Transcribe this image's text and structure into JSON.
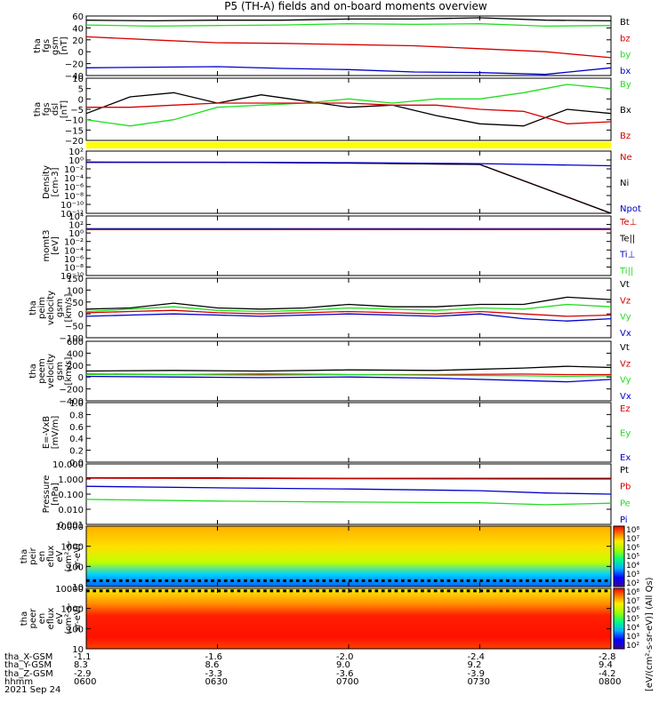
{
  "title": "P5 (TH-A) fields and on-board moments overview",
  "time_axis": {
    "ticks": [
      "0600",
      "0630",
      "0700",
      "0730",
      "0800"
    ],
    "date": "2021 Sep 24",
    "rows": [
      {
        "label": "tha_X-GSM",
        "values": [
          "-1.1",
          "-1.6",
          "-2.0",
          "-2.4",
          "-2.8"
        ]
      },
      {
        "label": "tha_Y-GSM",
        "values": [
          "8.3",
          "8.6",
          "9.0",
          "9.2",
          "9.4"
        ]
      },
      {
        "label": "tha_Z-GSM",
        "values": [
          "-2.9",
          "-3.3",
          "-3.6",
          "-3.9",
          "-4.2"
        ]
      },
      {
        "label": "hhmm",
        "values": [
          "0600",
          "0630",
          "0700",
          "0730",
          "0800"
        ]
      }
    ]
  },
  "colors": {
    "black": "#000000",
    "red": "#d40000",
    "green": "#22dd22",
    "blue": "#0000cc",
    "yellow": "#ffff00"
  },
  "chart_data": [
    {
      "type": "line",
      "panel": "fgs-gsm",
      "ylabel": [
        "tha",
        "fgs",
        "gsm",
        "[nT]"
      ],
      "ylim": [
        -40,
        60
      ],
      "ticks": [
        "60",
        "40",
        "20",
        "0",
        "−20",
        "−40"
      ],
      "legend": [
        {
          "name": "Bt",
          "color": "#000000"
        },
        {
          "name": "bz",
          "color": "#d40000"
        },
        {
          "name": "by",
          "color": "#22dd22"
        },
        {
          "name": "bx",
          "color": "#0000cc"
        }
      ],
      "series": [
        {
          "name": "Bt",
          "x": [
            0,
            15,
            30,
            45,
            60,
            75,
            90,
            105,
            120
          ],
          "values": [
            53,
            52,
            53,
            53,
            55,
            55,
            57,
            53,
            52
          ]
        },
        {
          "name": "by",
          "x": [
            0,
            15,
            30,
            45,
            60,
            75,
            90,
            105,
            120
          ],
          "values": [
            45,
            43,
            44,
            45,
            47,
            46,
            47,
            43,
            44
          ]
        },
        {
          "name": "bz",
          "x": [
            0,
            15,
            30,
            45,
            60,
            75,
            90,
            105,
            120
          ],
          "values": [
            25,
            20,
            15,
            14,
            12,
            10,
            5,
            0,
            -10
          ]
        },
        {
          "name": "bx",
          "x": [
            0,
            15,
            30,
            45,
            60,
            75,
            90,
            105,
            120
          ],
          "values": [
            -27,
            -26,
            -25,
            -28,
            -30,
            -34,
            -35,
            -38,
            -27
          ]
        }
      ]
    },
    {
      "type": "line",
      "panel": "fgs-dsl",
      "ylabel": [
        "tha",
        "fgs",
        "dsl",
        "[nT]"
      ],
      "ylim": [
        -20,
        10
      ],
      "ticks": [
        "10",
        "5",
        "0",
        "−5",
        "−10",
        "−15",
        "−20"
      ],
      "legend": [
        {
          "name": "By",
          "color": "#22dd22"
        },
        {
          "name": "Bx",
          "color": "#000000"
        },
        {
          "name": "Bz",
          "color": "#d40000"
        }
      ],
      "series": [
        {
          "name": "Bx",
          "x": [
            0,
            10,
            20,
            30,
            40,
            50,
            60,
            70,
            80,
            90,
            100,
            110,
            120
          ],
          "values": [
            -7,
            1,
            3,
            -2,
            2,
            -1,
            -4,
            -3,
            -8,
            -12,
            -13,
            -5,
            -7
          ]
        },
        {
          "name": "By",
          "x": [
            0,
            10,
            20,
            30,
            40,
            50,
            60,
            70,
            80,
            90,
            100,
            110,
            120
          ],
          "values": [
            -10,
            -13,
            -10,
            -4,
            -3,
            -2,
            0,
            -2,
            0,
            0,
            3,
            7,
            5
          ]
        },
        {
          "name": "Bz",
          "x": [
            0,
            10,
            20,
            30,
            40,
            50,
            60,
            70,
            80,
            90,
            100,
            110,
            120
          ],
          "values": [
            -4,
            -4,
            -3,
            -2,
            -2,
            -2,
            -2,
            -3,
            -3,
            -5,
            -6,
            -12,
            -11
          ]
        }
      ]
    },
    {
      "type": "line",
      "panel": "density",
      "ylabel": [
        "Density",
        "[cm-3]"
      ],
      "log": true,
      "ylim": [
        -12,
        2
      ],
      "ticks": [
        "10²",
        "10⁰",
        "10⁻²",
        "10⁻⁴",
        "10⁻⁶",
        "10⁻⁸",
        "10⁻¹⁰",
        "10⁻¹²"
      ],
      "legend": [
        {
          "name": "Ne",
          "color": "#d40000"
        },
        {
          "name": "Ni",
          "color": "#000000"
        },
        {
          "name": "Npot",
          "color": "#0000cc"
        }
      ],
      "series": [
        {
          "name": "Ne",
          "x": [
            0,
            30,
            60,
            90,
            120
          ],
          "values": [
            0.3,
            0.3,
            0.2,
            0.1,
            0
          ]
        },
        {
          "name": "Ni",
          "x": [
            0,
            30,
            60,
            90,
            120
          ],
          "values": [
            0.3,
            0.3,
            0.2,
            0.1,
            0
          ]
        },
        {
          "name": "Npot",
          "x": [
            0,
            30,
            60,
            90,
            120
          ],
          "values": [
            0.35,
            0.32,
            0.25,
            0.15,
            0.05
          ]
        }
      ]
    },
    {
      "type": "line",
      "panel": "momt3",
      "ylabel": [
        "momt3",
        "[eV]"
      ],
      "log": true,
      "ylim": [
        -12,
        4
      ],
      "ticks": [
        "10⁴",
        "10²",
        "10⁰",
        "10⁻²",
        "10⁻⁴",
        "10⁻⁶",
        "10⁻⁸",
        "10⁻¹⁰"
      ],
      "legend": [
        {
          "name": "Te⊥",
          "color": "#d40000"
        },
        {
          "name": "Te||",
          "color": "#000000"
        },
        {
          "name": "Ti⊥",
          "color": "#0000cc"
        },
        {
          "name": "Ti||",
          "color": "#22dd22"
        }
      ],
      "series": [
        {
          "name": "Ti||",
          "x": [
            0,
            30,
            60,
            90,
            120
          ],
          "values": [
            3.7,
            3.7,
            3.7,
            3.7,
            3.7
          ]
        },
        {
          "name": "Ti⊥",
          "x": [
            0,
            30,
            60,
            90,
            120
          ],
          "values": [
            3.6,
            3.6,
            3.6,
            3.6,
            3.6
          ]
        },
        {
          "name": "Te||",
          "x": [
            0,
            30,
            60,
            90,
            120
          ],
          "values": [
            2.2,
            2.2,
            2.3,
            2.4,
            2.5
          ]
        },
        {
          "name": "Te⊥",
          "x": [
            0,
            30,
            60,
            90,
            120
          ],
          "values": [
            2.1,
            2.1,
            2.2,
            2.3,
            2.4
          ]
        }
      ]
    },
    {
      "type": "line",
      "panel": "peim-velocity",
      "ylabel": [
        "tha",
        "peim",
        "velocity",
        "gsm",
        "[km/s]"
      ],
      "ylim": [
        -100,
        150
      ],
      "ticks": [
        "150",
        "100",
        "50",
        "0",
        "−50",
        "−100"
      ],
      "legend": [
        {
          "name": "Vt",
          "color": "#000000"
        },
        {
          "name": "Vz",
          "color": "#d40000"
        },
        {
          "name": "Vy",
          "color": "#22dd22"
        },
        {
          "name": "Vx",
          "color": "#0000cc"
        }
      ],
      "series": [
        {
          "name": "Vt",
          "x": [
            0,
            10,
            20,
            30,
            40,
            50,
            60,
            70,
            80,
            90,
            100,
            110,
            120
          ],
          "values": [
            20,
            25,
            45,
            25,
            20,
            25,
            40,
            30,
            30,
            40,
            40,
            70,
            60
          ]
        },
        {
          "name": "Vz",
          "x": [
            0,
            10,
            20,
            30,
            40,
            50,
            60,
            70,
            80,
            90,
            100,
            110,
            120
          ],
          "values": [
            5,
            10,
            15,
            5,
            0,
            5,
            10,
            5,
            0,
            10,
            0,
            -10,
            -5
          ]
        },
        {
          "name": "Vy",
          "x": [
            0,
            10,
            20,
            30,
            40,
            50,
            60,
            70,
            80,
            90,
            100,
            110,
            120
          ],
          "values": [
            10,
            20,
            30,
            15,
            10,
            15,
            25,
            20,
            15,
            25,
            20,
            40,
            30
          ]
        },
        {
          "name": "Vx",
          "x": [
            0,
            10,
            20,
            30,
            40,
            50,
            60,
            70,
            80,
            90,
            100,
            110,
            120
          ],
          "values": [
            -10,
            -5,
            0,
            -5,
            -10,
            -5,
            0,
            -5,
            -10,
            0,
            -20,
            -30,
            -20
          ]
        }
      ]
    },
    {
      "type": "line",
      "panel": "peem-velocity",
      "ylabel": [
        "tha",
        "peem",
        "velocity",
        "gsm",
        "[km/s]"
      ],
      "ylim": [
        -400,
        600
      ],
      "ticks": [
        "600",
        "400",
        "200",
        "0",
        "−200",
        "−400"
      ],
      "legend": [
        {
          "name": "Vt",
          "color": "#000000"
        },
        {
          "name": "Vz",
          "color": "#d40000"
        },
        {
          "name": "Vy",
          "color": "#22dd22"
        },
        {
          "name": "Vx",
          "color": "#0000cc"
        }
      ],
      "series": [
        {
          "name": "Vt",
          "x": [
            0,
            20,
            40,
            60,
            80,
            100,
            110,
            120
          ],
          "values": [
            100,
            110,
            100,
            120,
            110,
            150,
            180,
            160
          ]
        },
        {
          "name": "Vz",
          "x": [
            0,
            20,
            40,
            60,
            80,
            100,
            110,
            120
          ],
          "values": [
            50,
            40,
            50,
            40,
            40,
            50,
            40,
            40
          ]
        },
        {
          "name": "Vy",
          "x": [
            0,
            20,
            40,
            60,
            80,
            100,
            110,
            120
          ],
          "values": [
            40,
            40,
            30,
            40,
            30,
            20,
            10,
            20
          ]
        },
        {
          "name": "Vx",
          "x": [
            0,
            20,
            40,
            60,
            80,
            100,
            110,
            120
          ],
          "values": [
            10,
            0,
            -10,
            0,
            -20,
            -60,
            -80,
            -40
          ]
        }
      ]
    },
    {
      "type": "line",
      "panel": "e-vxb",
      "ylabel": [
        "E=-VxB",
        "[mV/m]"
      ],
      "ylim": [
        0,
        1
      ],
      "ticks": [
        "1.0",
        "0.8",
        "0.6",
        "0.4",
        "0.2",
        "0.0"
      ],
      "legend": [
        {
          "name": "Ez",
          "color": "#d40000"
        },
        {
          "name": "Ey",
          "color": "#22dd22"
        },
        {
          "name": "Ex",
          "color": "#0000cc"
        }
      ],
      "series": []
    },
    {
      "type": "line",
      "panel": "pressure",
      "ylabel": [
        "Pressure",
        "[nPa]"
      ],
      "log": true,
      "ylim": [
        -3,
        1
      ],
      "ticks": [
        "10.000",
        "1.000",
        "0.100",
        "0.010",
        "0.001"
      ],
      "legend": [
        {
          "name": "Pt",
          "color": "#000000"
        },
        {
          "name": "Pb",
          "color": "#d40000"
        },
        {
          "name": "Pe",
          "color": "#22dd22"
        },
        {
          "name": "Pi",
          "color": "#0000cc"
        }
      ],
      "series": [
        {
          "name": "Pt",
          "x": [
            0,
            30,
            60,
            90,
            120
          ],
          "values": [
            1.2,
            1.2,
            1.1,
            1.1,
            1.1
          ]
        },
        {
          "name": "Pb",
          "x": [
            0,
            30,
            60,
            90,
            120
          ],
          "values": [
            1.15,
            1.12,
            1.05,
            1.02,
            1.0
          ]
        },
        {
          "name": "Pi",
          "x": [
            0,
            30,
            60,
            90,
            105,
            120
          ],
          "values": [
            0.33,
            0.26,
            0.22,
            0.17,
            0.12,
            0.1
          ]
        },
        {
          "name": "Pe",
          "x": [
            0,
            30,
            60,
            90,
            105,
            120
          ],
          "values": [
            0.045,
            0.035,
            0.03,
            0.027,
            0.02,
            0.025
          ]
        }
      ]
    },
    {
      "type": "heatmap",
      "panel": "peir-en-eflux",
      "ylabel": [
        "tha",
        "peir",
        "en",
        "eflux",
        "eV",
        "(cm²-s-",
        "sr-eV)"
      ],
      "log": true,
      "ylim": [
        5,
        30000
      ],
      "ticks": [
        "10000",
        "1000",
        "100",
        "10"
      ]
    },
    {
      "type": "heatmap",
      "panel": "peer-en-eflux",
      "ylabel": [
        "tha",
        "peer",
        "en",
        "eflux",
        "eV",
        "(cm²-s-",
        "sr-eV)"
      ],
      "log": true,
      "ylim": [
        5,
        30000
      ],
      "ticks": [
        "10000",
        "1000",
        "100",
        "10"
      ]
    }
  ],
  "colorbars": {
    "ticks": [
      "10⁸",
      "10⁷",
      "10⁶",
      "10⁵",
      "10⁴",
      "10³",
      "10²"
    ],
    "label": "[eV/(cm²-s-sr-eV)] (All Qs)"
  },
  "xaxis": {
    "xlim": [
      0,
      120
    ]
  }
}
